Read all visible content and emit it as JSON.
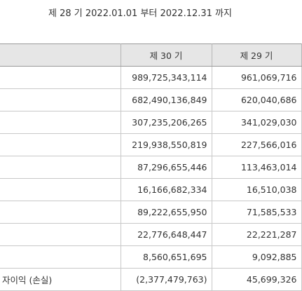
{
  "period": "제 28 기 2022.01.01 부터 2022.12.31 까지",
  "header": {
    "label": "",
    "current": "제 30 기",
    "previous": "제 29 기"
  },
  "rows": [
    {
      "label": "",
      "current": "989,725,343,114",
      "previous": "961,069,716"
    },
    {
      "label": "",
      "current": "682,490,136,849",
      "previous": "620,040,686"
    },
    {
      "label": "",
      "current": "307,235,206,265",
      "previous": "341,029,030"
    },
    {
      "label": "",
      "current": "219,938,550,819",
      "previous": "227,566,016"
    },
    {
      "label": "",
      "current": "87,296,655,446",
      "previous": "113,463,014"
    },
    {
      "label": "",
      "current": "16,166,682,334",
      "previous": "16,510,038"
    },
    {
      "label": "",
      "current": "89,222,655,950",
      "previous": "71,585,533"
    },
    {
      "label": "",
      "current": "22,776,648,447",
      "previous": "22,221,287"
    },
    {
      "label": "",
      "current": "8,560,651,695",
      "previous": "9,092,885"
    },
    {
      "label": "자이익 (손실)",
      "current": "(2,377,479,763)",
      "previous": "45,699,326"
    }
  ]
}
